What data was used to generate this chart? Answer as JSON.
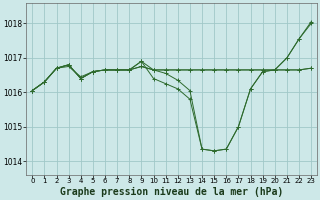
{
  "background_color": "#cde8e8",
  "grid_color": "#a0c8c8",
  "line_color": "#2d6a2d",
  "xlabel": "Graphe pression niveau de la mer (hPa)",
  "xlabel_fontsize": 7,
  "ylim": [
    1013.6,
    1018.6
  ],
  "xlim": [
    -0.5,
    23.5
  ],
  "yticks": [
    1014,
    1015,
    1016,
    1017,
    1018
  ],
  "xticks": [
    0,
    1,
    2,
    3,
    4,
    5,
    6,
    7,
    8,
    9,
    10,
    11,
    12,
    13,
    14,
    15,
    16,
    17,
    18,
    19,
    20,
    21,
    22,
    23
  ],
  "series": [
    [
      1016.05,
      1016.3,
      1016.7,
      1016.75,
      1016.45,
      1016.6,
      1016.65,
      1016.65,
      1016.65,
      1016.75,
      1016.65,
      1016.65,
      1016.65,
      1016.65,
      1016.65,
      1016.65,
      1016.65,
      1016.65,
      1016.65,
      1016.65,
      1016.65,
      1016.65,
      1016.65,
      1016.7
    ],
    [
      1016.05,
      1016.3,
      1016.7,
      1016.8,
      1016.4,
      1016.6,
      1016.65,
      1016.65,
      1016.65,
      1016.9,
      1016.4,
      1016.25,
      1016.1,
      1015.8,
      1014.35,
      1014.3,
      1014.35,
      1015.0,
      1016.1,
      1016.6,
      1016.65,
      1016.65,
      1016.65,
      1016.7
    ],
    [
      1016.05,
      1016.3,
      1016.7,
      1016.8,
      1016.4,
      1016.6,
      1016.65,
      1016.65,
      1016.65,
      1016.75,
      1016.65,
      1016.55,
      1016.35,
      1016.05,
      1014.35,
      1014.3,
      1014.35,
      1015.0,
      1016.1,
      1016.6,
      1016.65,
      1017.0,
      1017.55,
      1018.0
    ],
    [
      1016.05,
      1016.3,
      1016.7,
      1016.8,
      1016.4,
      1016.6,
      1016.65,
      1016.65,
      1016.65,
      1016.9,
      1016.65,
      1016.65,
      1016.65,
      1016.65,
      1016.65,
      1016.65,
      1016.65,
      1016.65,
      1016.65,
      1016.65,
      1016.65,
      1017.0,
      1017.55,
      1018.05
    ]
  ]
}
